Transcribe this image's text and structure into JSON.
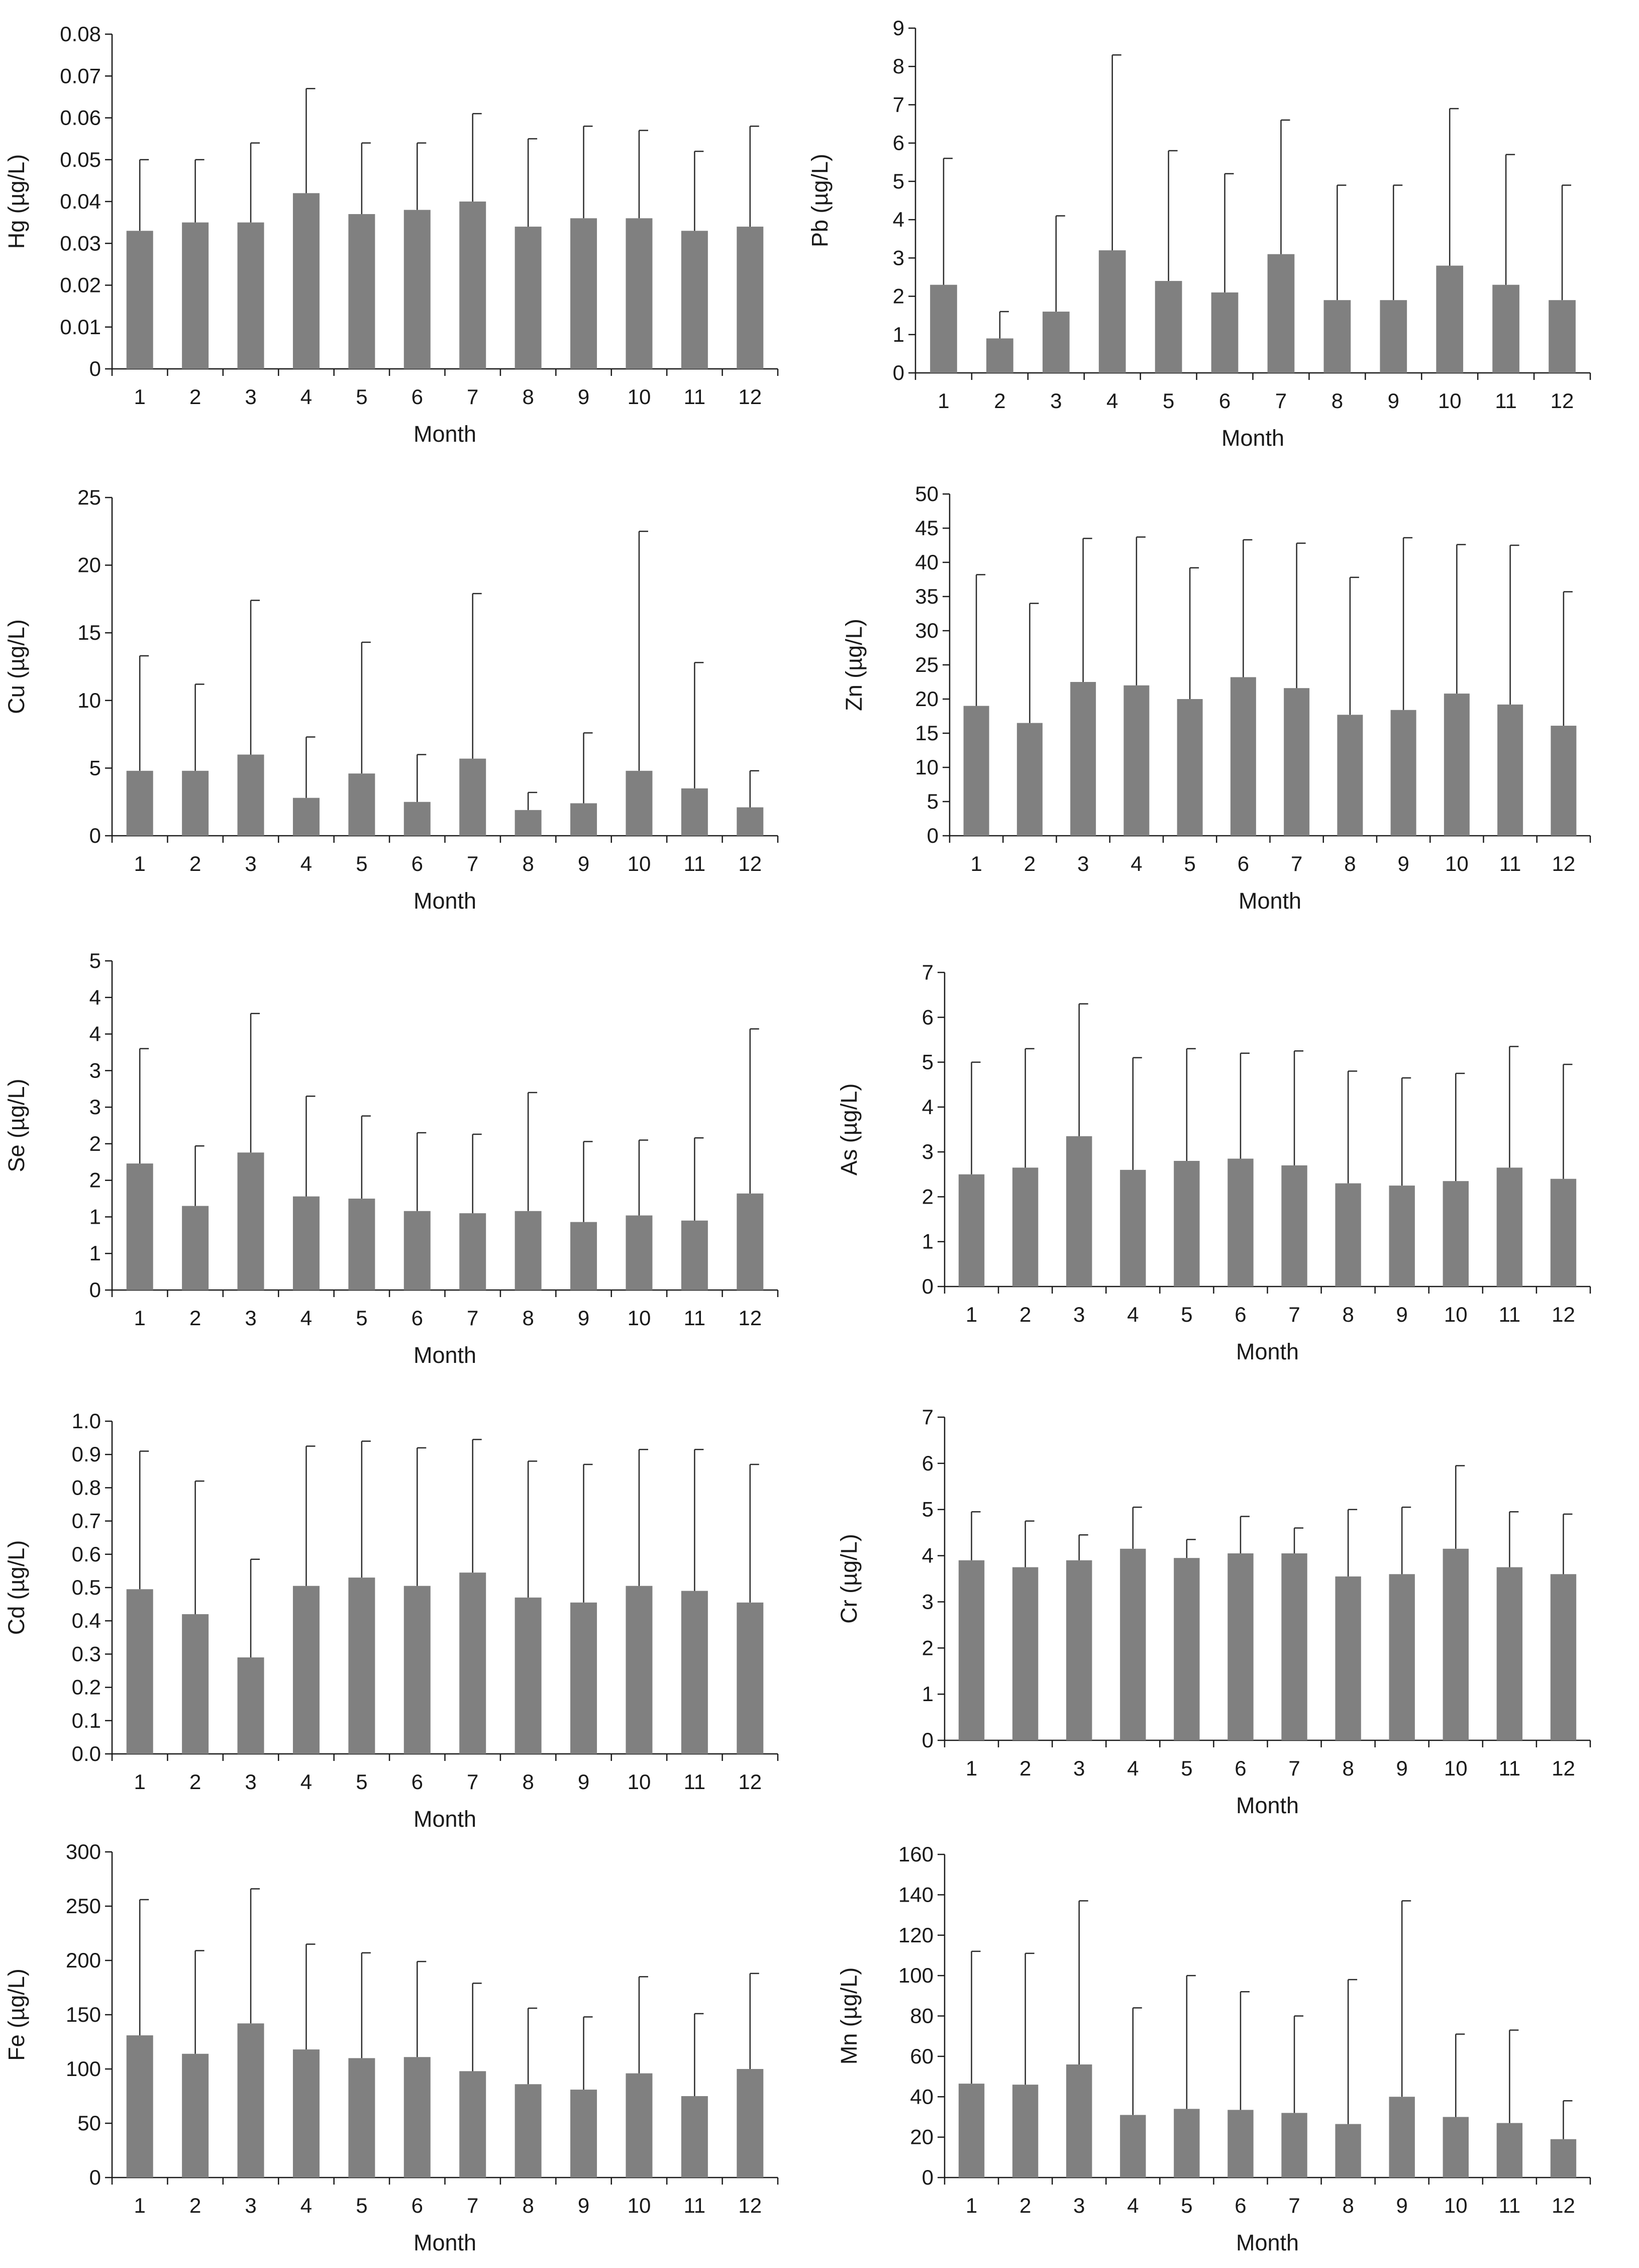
{
  "chart_data": [
    {
      "type": "bar",
      "ylabel": "Hg (µg/L)",
      "xlabel": "Month",
      "categories": [
        "1",
        "2",
        "3",
        "4",
        "5",
        "6",
        "7",
        "8",
        "9",
        "10",
        "11",
        "12"
      ],
      "values": [
        0.033,
        0.035,
        0.035,
        0.042,
        0.037,
        0.038,
        0.04,
        0.034,
        0.036,
        0.036,
        0.033,
        0.034
      ],
      "error_upper": [
        0.05,
        0.05,
        0.054,
        0.067,
        0.054,
        0.054,
        0.061,
        0.055,
        0.058,
        0.057,
        0.052,
        0.058
      ],
      "ylim": [
        0,
        0.08
      ],
      "yticks": [
        "0",
        "0.01",
        "0.02",
        "0.03",
        "0.04",
        "0.05",
        "0.06",
        "0.07",
        "0.08"
      ]
    },
    {
      "type": "bar",
      "ylabel": "Pb (µg/L)",
      "xlabel": "Month",
      "categories": [
        "1",
        "2",
        "3",
        "4",
        "5",
        "6",
        "7",
        "8",
        "9",
        "10",
        "11",
        "12"
      ],
      "values": [
        2.3,
        0.9,
        1.6,
        3.2,
        2.4,
        2.1,
        3.1,
        1.9,
        1.9,
        2.8,
        2.3,
        1.9
      ],
      "error_upper": [
        5.6,
        1.6,
        4.1,
        8.3,
        5.8,
        5.2,
        6.6,
        4.9,
        4.9,
        6.9,
        5.7,
        4.9
      ],
      "ylim": [
        0,
        9
      ],
      "yticks": [
        "0",
        "1",
        "2",
        "3",
        "4",
        "5",
        "6",
        "7",
        "8",
        "9"
      ]
    },
    {
      "type": "bar",
      "ylabel": "Cu (µg/L)",
      "xlabel": "Month",
      "categories": [
        "1",
        "2",
        "3",
        "4",
        "5",
        "6",
        "7",
        "8",
        "9",
        "10",
        "11",
        "12"
      ],
      "values": [
        4.8,
        4.8,
        6.0,
        2.8,
        4.6,
        2.5,
        5.7,
        1.9,
        2.4,
        4.8,
        3.5,
        2.1
      ],
      "error_upper": [
        13.3,
        11.2,
        17.4,
        7.3,
        14.3,
        6.0,
        17.9,
        3.2,
        7.6,
        22.5,
        12.8,
        4.8
      ],
      "ylim": [
        0,
        25
      ],
      "yticks": [
        "0",
        "5",
        "10",
        "15",
        "20",
        "25"
      ]
    },
    {
      "type": "bar",
      "ylabel": "Zn (µg/L)",
      "xlabel": "Month",
      "categories": [
        "1",
        "2",
        "3",
        "4",
        "5",
        "6",
        "7",
        "8",
        "9",
        "10",
        "11",
        "12"
      ],
      "values": [
        19.0,
        16.5,
        22.5,
        22.0,
        20.0,
        23.2,
        21.6,
        17.7,
        18.4,
        20.8,
        19.2,
        16.1
      ],
      "error_upper": [
        38.2,
        34.0,
        43.5,
        43.7,
        39.2,
        43.3,
        42.8,
        37.8,
        43.6,
        42.6,
        42.5,
        35.7
      ],
      "ylim": [
        0,
        50
      ],
      "yticks": [
        "0",
        "5",
        "10",
        "15",
        "20",
        "25",
        "30",
        "35",
        "40",
        "45",
        "50"
      ]
    },
    {
      "type": "bar",
      "ylabel": "Se (µg/L)",
      "xlabel": "Month",
      "categories": [
        "1",
        "2",
        "3",
        "4",
        "5",
        "6",
        "7",
        "8",
        "9",
        "10",
        "11",
        "12"
      ],
      "values": [
        1.73,
        1.15,
        1.88,
        1.28,
        1.25,
        1.08,
        1.05,
        1.08,
        0.93,
        1.02,
        0.95,
        1.32
      ],
      "error_upper": [
        3.3,
        1.97,
        3.78,
        2.65,
        2.38,
        2.15,
        2.13,
        2.7,
        2.03,
        2.05,
        2.08,
        3.57
      ],
      "ylim": [
        0,
        4.5
      ],
      "yticks": [
        "0",
        "1",
        "1",
        "2",
        "2",
        "3",
        "3",
        "4",
        "4",
        "5"
      ]
    },
    {
      "type": "bar",
      "ylabel": "As (µg/L)",
      "xlabel": "Month",
      "categories": [
        "1",
        "2",
        "3",
        "4",
        "5",
        "6",
        "7",
        "8",
        "9",
        "10",
        "11",
        "12"
      ],
      "values": [
        2.5,
        2.65,
        3.35,
        2.6,
        2.8,
        2.85,
        2.7,
        2.3,
        2.25,
        2.35,
        2.65,
        2.4
      ],
      "error_upper": [
        5.0,
        5.3,
        6.3,
        5.1,
        5.3,
        5.2,
        5.25,
        4.8,
        4.65,
        4.75,
        5.35,
        4.95
      ],
      "ylim": [
        0,
        7
      ],
      "yticks": [
        "0",
        "1",
        "2",
        "3",
        "4",
        "5",
        "6",
        "7"
      ]
    },
    {
      "type": "bar",
      "ylabel": "Cd (µg/L)",
      "xlabel": "Month",
      "categories": [
        "1",
        "2",
        "3",
        "4",
        "5",
        "6",
        "7",
        "8",
        "9",
        "10",
        "11",
        "12"
      ],
      "values": [
        0.495,
        0.42,
        0.29,
        0.505,
        0.53,
        0.505,
        0.545,
        0.47,
        0.455,
        0.505,
        0.49,
        0.455
      ],
      "error_upper": [
        0.91,
        0.82,
        0.585,
        0.925,
        0.94,
        0.92,
        0.945,
        0.88,
        0.87,
        0.915,
        0.915,
        0.87
      ],
      "ylim": [
        0,
        1.0
      ],
      "yticks": [
        "0.0",
        "0.1",
        "0.2",
        "0.3",
        "0.4",
        "0.5",
        "0.6",
        "0.7",
        "0.8",
        "0.9",
        "1.0"
      ]
    },
    {
      "type": "bar",
      "ylabel": "Cr (µg/L)",
      "xlabel": "Month",
      "categories": [
        "1",
        "2",
        "3",
        "4",
        "5",
        "6",
        "7",
        "8",
        "9",
        "10",
        "11",
        "12"
      ],
      "values": [
        3.9,
        3.75,
        3.9,
        4.15,
        3.95,
        4.05,
        4.05,
        3.55,
        3.6,
        4.15,
        3.75,
        3.6
      ],
      "error_upper": [
        4.95,
        4.75,
        4.45,
        5.05,
        4.35,
        4.85,
        4.6,
        5.0,
        5.05,
        5.95,
        4.95,
        4.9
      ],
      "ylim": [
        0,
        7
      ],
      "yticks": [
        "0",
        "1",
        "2",
        "3",
        "4",
        "5",
        "6",
        "7"
      ]
    },
    {
      "type": "bar",
      "ylabel": "Fe (µg/L)",
      "xlabel": "Month",
      "categories": [
        "1",
        "2",
        "3",
        "4",
        "5",
        "6",
        "7",
        "8",
        "9",
        "10",
        "11",
        "12"
      ],
      "values": [
        131,
        114,
        142,
        118,
        110,
        111,
        98,
        86,
        81,
        96,
        75,
        100
      ],
      "error_upper": [
        256,
        209,
        266,
        215,
        207,
        199,
        179,
        156,
        148,
        185,
        151,
        188
      ],
      "ylim": [
        0,
        300
      ],
      "yticks": [
        "0",
        "50",
        "100",
        "150",
        "200",
        "250",
        "300"
      ]
    },
    {
      "type": "bar",
      "ylabel": "Mn (µg/L)",
      "xlabel": "Month",
      "categories": [
        "1",
        "2",
        "3",
        "4",
        "5",
        "6",
        "7",
        "8",
        "9",
        "10",
        "11",
        "12"
      ],
      "values": [
        46.5,
        46,
        56,
        31,
        34,
        33.5,
        32,
        26.5,
        40,
        30,
        27,
        19
      ],
      "error_upper": [
        112,
        111,
        137,
        84,
        100,
        92,
        80,
        98,
        137,
        71,
        73,
        38
      ],
      "ylim": [
        0,
        160
      ],
      "yticks": [
        "0",
        "20",
        "40",
        "60",
        "80",
        "100",
        "120",
        "140",
        "160"
      ]
    }
  ]
}
